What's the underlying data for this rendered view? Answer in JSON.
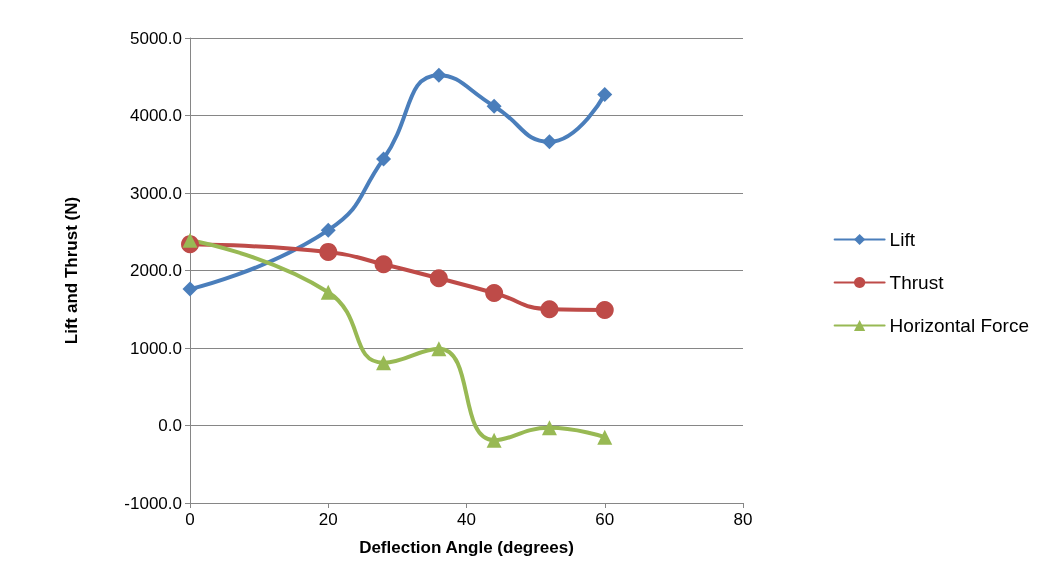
{
  "chart_data": {
    "type": "line",
    "xlabel": "Deflection Angle (degrees)",
    "ylabel": "Lift and Thrust (N)",
    "x": [
      0,
      20,
      28,
      36,
      44,
      52,
      60
    ],
    "series": [
      {
        "name": "Lift",
        "color": "#4a7ebb",
        "marker": "diamond",
        "values": [
          1760,
          2520,
          3440,
          4520,
          4120,
          3660,
          4270
        ]
      },
      {
        "name": "Thrust",
        "color": "#be4b48",
        "marker": "circle",
        "values": [
          2340,
          2240,
          2080,
          1900,
          1710,
          1500,
          1490
        ]
      },
      {
        "name": "Horizontal Force",
        "color": "#98b954",
        "marker": "triangle",
        "values": [
          2390,
          1720,
          810,
          990,
          -190,
          -30,
          -150
        ]
      }
    ],
    "xlim": [
      0,
      80
    ],
    "xticks": [
      0,
      20,
      40,
      60,
      80
    ],
    "ylim": [
      -1000,
      5000
    ],
    "yticks": [
      {
        "value": -1000,
        "label": "-1000.0"
      },
      {
        "value": 0,
        "label": "0.0"
      },
      {
        "value": 1000,
        "label": "1000.0"
      },
      {
        "value": 2000,
        "label": "2000.0"
      },
      {
        "value": 3000,
        "label": "3000.0"
      },
      {
        "value": 4000,
        "label": "4000.0"
      },
      {
        "value": 5000,
        "label": "5000.0"
      }
    ],
    "grid": "y",
    "legend": "right",
    "line_style": "solid"
  }
}
